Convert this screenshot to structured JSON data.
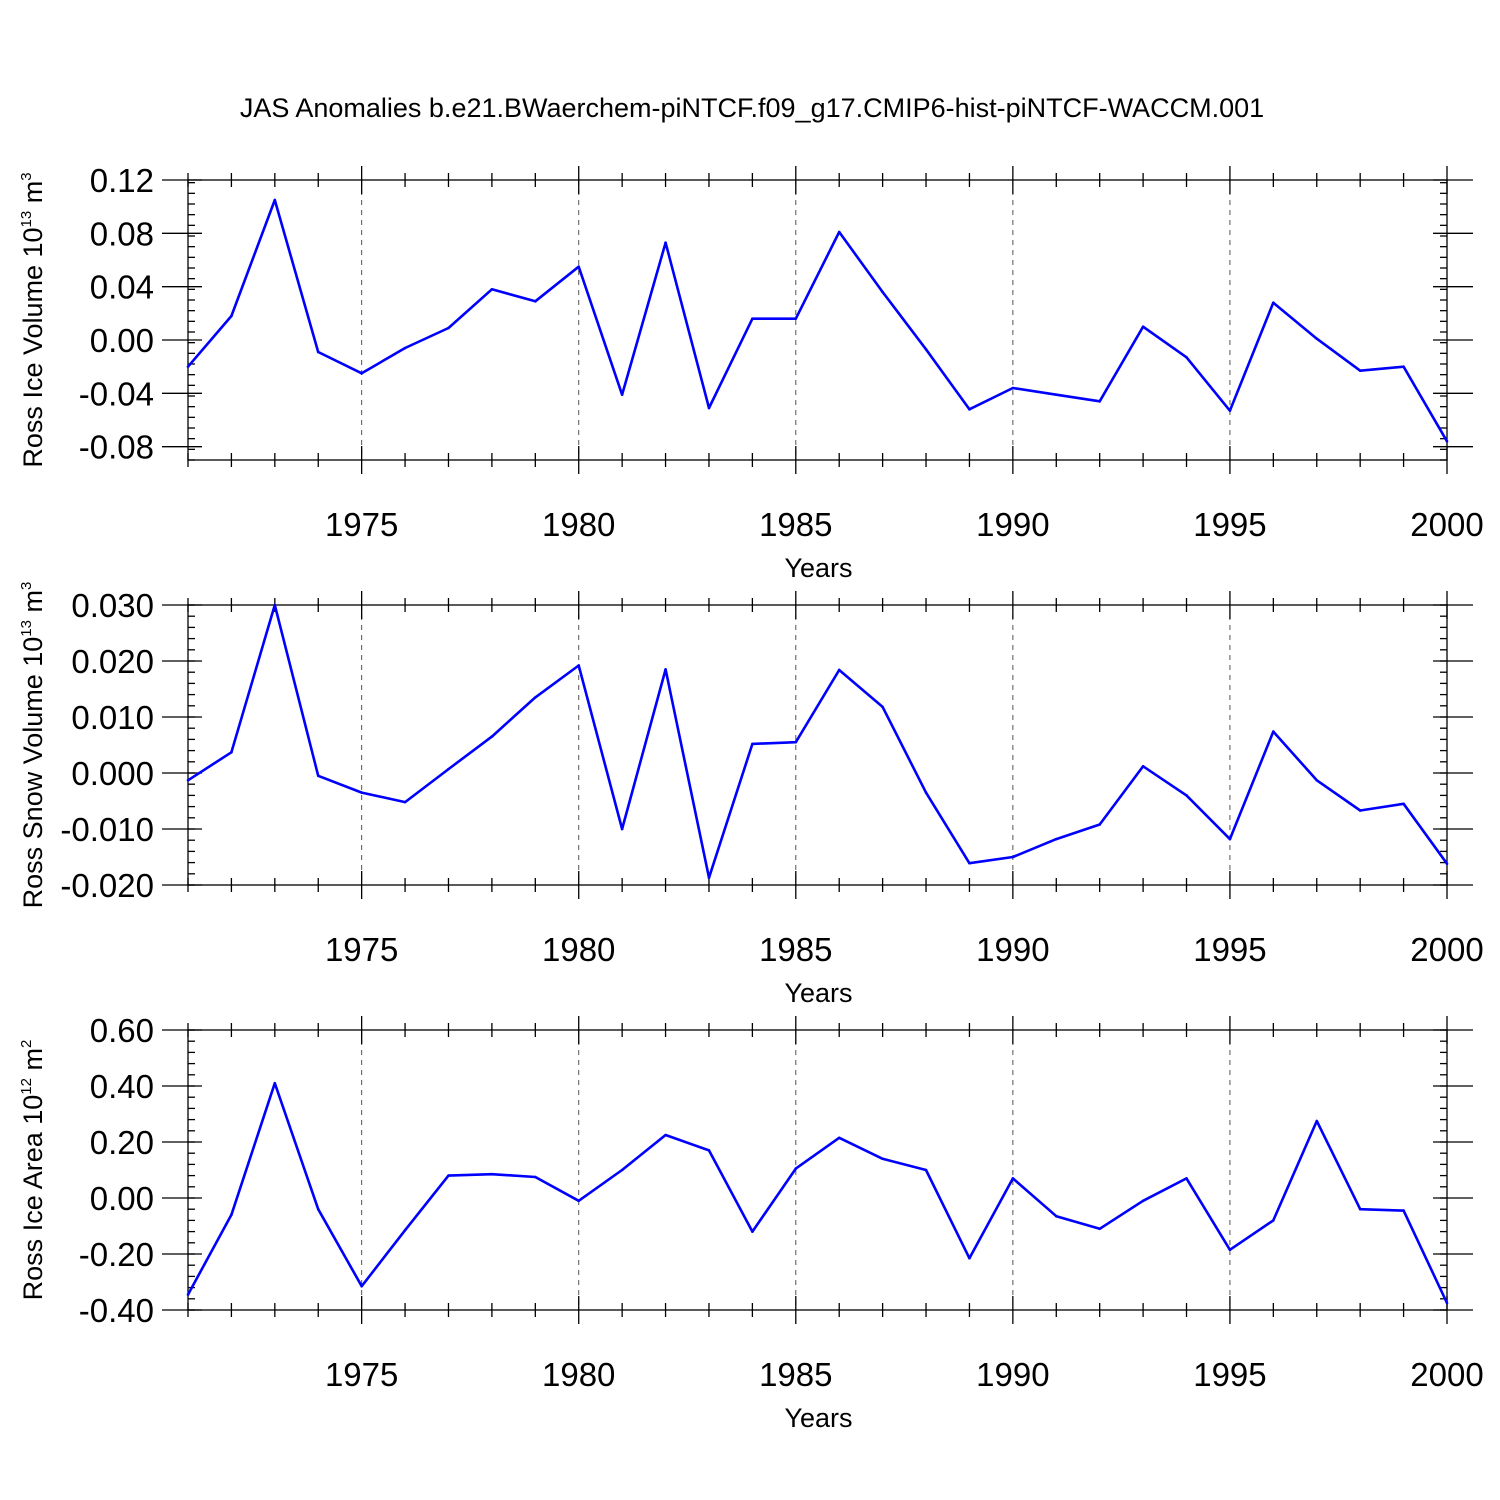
{
  "title": "JAS Anomalies b.e21.BWaerchem-piNTCF.f09_g17.CMIP6-hist-piNTCF-WACCM.001",
  "line_color": "#0000ff",
  "chart_data": [
    {
      "type": "line",
      "ylabel_main": "Ross Ice Volume 10",
      "ylabel_exp": "13",
      "ylabel_unit": "m",
      "ylabel_unit_exp": "3",
      "xlabel": "Years",
      "xlim": [
        1971,
        2000
      ],
      "ylim": [
        -0.09,
        0.12
      ],
      "yticks": [
        -0.08,
        -0.04,
        0.0,
        0.04,
        0.08,
        0.12
      ],
      "ytick_labels": [
        "-0.08",
        "-0.04",
        "0.00",
        "0.04",
        "0.08",
        "0.12"
      ],
      "y_minor_step": 0.008,
      "xticks": [
        1975,
        1980,
        1985,
        1990,
        1995,
        2000
      ],
      "xtick_labels": [
        "1975",
        "1980",
        "1985",
        "1990",
        "1995",
        "2000"
      ],
      "grid_x": [
        1975,
        1980,
        1985,
        1990,
        1995
      ],
      "x": [
        1971,
        1972,
        1973,
        1974,
        1975,
        1976,
        1977,
        1978,
        1979,
        1980,
        1981,
        1982,
        1983,
        1984,
        1985,
        1986,
        1987,
        1988,
        1989,
        1990,
        1991,
        1992,
        1993,
        1994,
        1995,
        1996,
        1997,
        1998,
        1999,
        2000
      ],
      "values": [
        -0.02,
        0.018,
        0.105,
        -0.009,
        -0.025,
        -0.006,
        0.009,
        0.038,
        0.029,
        0.055,
        -0.041,
        0.073,
        -0.051,
        0.016,
        0.016,
        0.081,
        0.036,
        -0.007,
        -0.052,
        -0.036,
        -0.041,
        -0.046,
        0.01,
        -0.013,
        -0.053,
        0.028,
        0.001,
        -0.023,
        -0.02,
        -0.076
      ]
    },
    {
      "type": "line",
      "ylabel_main": "Ross Snow Volume 10",
      "ylabel_exp": "13",
      "ylabel_unit": "m",
      "ylabel_unit_exp": "3",
      "xlabel": "Years",
      "xlim": [
        1971,
        2000
      ],
      "ylim": [
        -0.02,
        0.03
      ],
      "yticks": [
        -0.02,
        -0.01,
        0.0,
        0.01,
        0.02,
        0.03
      ],
      "ytick_labels": [
        "-0.020",
        "-0.010",
        "0.000",
        "0.010",
        "0.020",
        "0.030"
      ],
      "y_minor_step": 0.002,
      "xticks": [
        1975,
        1980,
        1985,
        1990,
        1995,
        2000
      ],
      "xtick_labels": [
        "1975",
        "1980",
        "1985",
        "1990",
        "1995",
        "2000"
      ],
      "grid_x": [
        1975,
        1980,
        1985,
        1990,
        1995
      ],
      "x": [
        1971,
        1972,
        1973,
        1974,
        1975,
        1976,
        1977,
        1978,
        1979,
        1980,
        1981,
        1982,
        1983,
        1984,
        1985,
        1986,
        1987,
        1988,
        1989,
        1990,
        1991,
        1992,
        1993,
        1994,
        1995,
        1996,
        1997,
        1998,
        1999,
        2000
      ],
      "values": [
        -0.0013,
        0.0037,
        0.03,
        -0.0005,
        -0.0035,
        -0.0052,
        0.0007,
        0.0065,
        0.0135,
        0.0192,
        -0.01,
        0.0185,
        -0.0187,
        0.0052,
        0.0055,
        0.0184,
        0.0118,
        -0.0035,
        -0.0161,
        -0.015,
        -0.0118,
        -0.0092,
        0.0012,
        -0.004,
        -0.0118,
        0.0074,
        -0.0013,
        -0.0067,
        -0.0055,
        -0.0162
      ]
    },
    {
      "type": "line",
      "ylabel_main": "Ross Ice Area 10",
      "ylabel_exp": "12",
      "ylabel_unit": "m",
      "ylabel_unit_exp": "2",
      "xlabel": "Years",
      "xlim": [
        1971,
        2000
      ],
      "ylim": [
        -0.4,
        0.6
      ],
      "yticks": [
        -0.4,
        -0.2,
        0.0,
        0.2,
        0.4,
        0.6
      ],
      "ytick_labels": [
        "-0.40",
        "-0.20",
        "0.00",
        "0.20",
        "0.40",
        "0.60"
      ],
      "y_minor_step": 0.04,
      "xticks": [
        1975,
        1980,
        1985,
        1990,
        1995,
        2000
      ],
      "xtick_labels": [
        "1975",
        "1980",
        "1985",
        "1990",
        "1995",
        "2000"
      ],
      "grid_x": [
        1975,
        1980,
        1985,
        1990,
        1995
      ],
      "x": [
        1971,
        1972,
        1973,
        1974,
        1975,
        1976,
        1977,
        1978,
        1979,
        1980,
        1981,
        1982,
        1983,
        1984,
        1985,
        1986,
        1987,
        1988,
        1989,
        1990,
        1991,
        1992,
        1993,
        1994,
        1995,
        1996,
        1997,
        1998,
        1999,
        2000
      ],
      "values": [
        -0.345,
        -0.06,
        0.41,
        -0.04,
        -0.315,
        -0.115,
        0.08,
        0.085,
        0.075,
        -0.01,
        0.1,
        0.225,
        0.17,
        -0.12,
        0.105,
        0.215,
        0.14,
        0.1,
        -0.215,
        0.07,
        -0.065,
        -0.11,
        -0.01,
        0.07,
        -0.185,
        -0.08,
        0.275,
        -0.04,
        -0.045,
        -0.375
      ]
    }
  ]
}
